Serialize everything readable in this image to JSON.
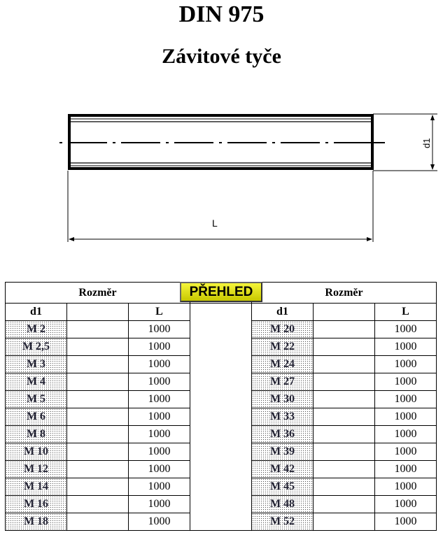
{
  "title": "DIN 975",
  "subtitle": "Závitové tyče",
  "drawing": {
    "length_label": "L",
    "diameter_label": "d1"
  },
  "overview_button": "PŘEHLED",
  "tables": [
    {
      "header": "Rozměr",
      "col_d1": "d1",
      "col_L": "L",
      "rows": [
        {
          "d1": "M 2",
          "L": "1000"
        },
        {
          "d1": "M 2,5",
          "L": "1000"
        },
        {
          "d1": "M 3",
          "L": "1000"
        },
        {
          "d1": "M 4",
          "L": "1000"
        },
        {
          "d1": "M 5",
          "L": "1000"
        },
        {
          "d1": "M 6",
          "L": "1000"
        },
        {
          "d1": "M 8",
          "L": "1000"
        },
        {
          "d1": "M 10",
          "L": "1000"
        },
        {
          "d1": "M 12",
          "L": "1000"
        },
        {
          "d1": "M 14",
          "L": "1000"
        },
        {
          "d1": "M 16",
          "L": "1000"
        },
        {
          "d1": "M 18",
          "L": "1000"
        }
      ]
    },
    {
      "header": "Rozměr",
      "col_d1": "d1",
      "col_L": "L",
      "rows": [
        {
          "d1": "M 20",
          "L": "1000"
        },
        {
          "d1": "M 22",
          "L": "1000"
        },
        {
          "d1": "M 24",
          "L": "1000"
        },
        {
          "d1": "M 27",
          "L": "1000"
        },
        {
          "d1": "M 30",
          "L": "1000"
        },
        {
          "d1": "M 33",
          "L": "1000"
        },
        {
          "d1": "M 36",
          "L": "1000"
        },
        {
          "d1": "M 39",
          "L": "1000"
        },
        {
          "d1": "M 42",
          "L": "1000"
        },
        {
          "d1": "M 45",
          "L": "1000"
        },
        {
          "d1": "M 48",
          "L": "1000"
        },
        {
          "d1": "M 52",
          "L": "1000"
        }
      ]
    }
  ]
}
